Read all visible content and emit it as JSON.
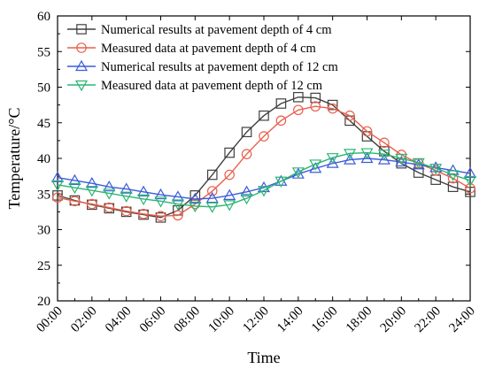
{
  "chart_data": {
    "type": "line",
    "xlabel": "Time",
    "ylabel": "Temperature/°C",
    "x_tick_labels": [
      "00:00",
      "02:00",
      "04:00",
      "06:00",
      "08:00",
      "10:00",
      "12:00",
      "14:00",
      "16:00",
      "18:00",
      "20:00",
      "22:00",
      "24:00"
    ],
    "xlim": [
      0,
      24
    ],
    "ylim": [
      20,
      60
    ],
    "y_ticks": [
      20,
      25,
      30,
      35,
      40,
      45,
      50,
      55,
      60
    ],
    "grid": false,
    "legend_position": "top-left",
    "x": [
      0,
      1,
      2,
      3,
      4,
      5,
      6,
      7,
      8,
      9,
      10,
      11,
      12,
      13,
      14,
      15,
      16,
      17,
      18,
      19,
      20,
      21,
      22,
      23,
      24
    ],
    "series": [
      {
        "name": "Numerical results at pavement depth of 4 cm",
        "color": "#404040",
        "marker": "square",
        "values": [
          34.8,
          34.1,
          33.5,
          33.0,
          32.5,
          32.1,
          31.7,
          32.7,
          34.8,
          37.7,
          40.8,
          43.7,
          46.0,
          47.7,
          48.6,
          48.5,
          47.5,
          45.3,
          43.1,
          41.0,
          39.3,
          38.0,
          37.0,
          36.0,
          35.3
        ]
      },
      {
        "name": "Measured data at pavement depth of 4 cm",
        "color": "#e8604c",
        "marker": "circle",
        "values": [
          34.5,
          34.0,
          33.6,
          33.1,
          32.6,
          32.2,
          31.9,
          32.0,
          33.6,
          35.4,
          37.7,
          40.6,
          43.1,
          45.3,
          46.8,
          47.3,
          47.0,
          46.0,
          43.8,
          42.2,
          40.5,
          39.3,
          38.3,
          37.2,
          35.8
        ]
      },
      {
        "name": "Numerical results at pavement depth of 12 cm",
        "color": "#3b5bdb",
        "marker": "triangle-up",
        "values": [
          37.3,
          36.9,
          36.5,
          36.0,
          35.7,
          35.3,
          34.9,
          34.6,
          34.3,
          34.4,
          34.8,
          35.3,
          35.9,
          36.8,
          37.8,
          38.6,
          39.3,
          39.8,
          40.0,
          39.8,
          39.5,
          39.1,
          38.7,
          38.3,
          37.9
        ]
      },
      {
        "name": "Measured data at pavement depth of 12 cm",
        "color": "#2bb673",
        "marker": "triangle-down",
        "values": [
          36.3,
          35.9,
          35.5,
          35.1,
          34.7,
          34.3,
          34.0,
          33.6,
          33.3,
          33.2,
          33.5,
          34.4,
          35.5,
          36.8,
          38.1,
          39.2,
          40.1,
          40.7,
          40.8,
          40.6,
          40.0,
          39.4,
          38.6,
          37.7,
          36.9
        ]
      }
    ]
  }
}
